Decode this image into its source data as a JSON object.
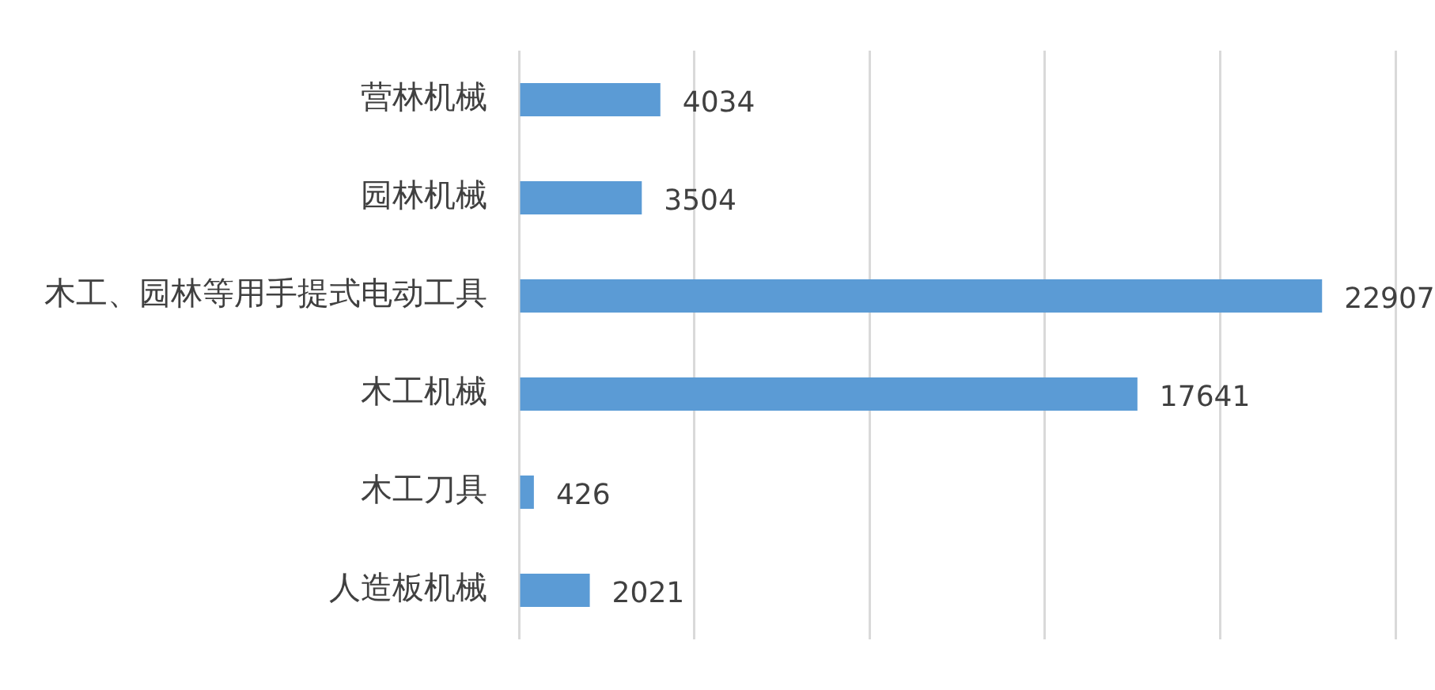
{
  "chart_data": {
    "type": "bar",
    "orientation": "horizontal",
    "categories": [
      "营林机械",
      "园林机械",
      "木工、园林等用手提式电动工具",
      "木工机械",
      "木工刀具",
      "人造板机械"
    ],
    "values": [
      4034,
      3504,
      22907,
      17641,
      426,
      2021
    ],
    "color": "#5b9bd5",
    "xlim": [
      0,
      25000
    ],
    "xticks": [
      {
        "value": 0,
        "label": null
      },
      {
        "value": 5000,
        "label": null
      },
      {
        "value": 10000,
        "label": null
      },
      {
        "value": 15000,
        "label": null
      },
      {
        "value": 20000,
        "label": null
      },
      {
        "value": 25000,
        "label": null
      }
    ],
    "grid": "x",
    "tick_labels": "y",
    "data_labels": true
  }
}
